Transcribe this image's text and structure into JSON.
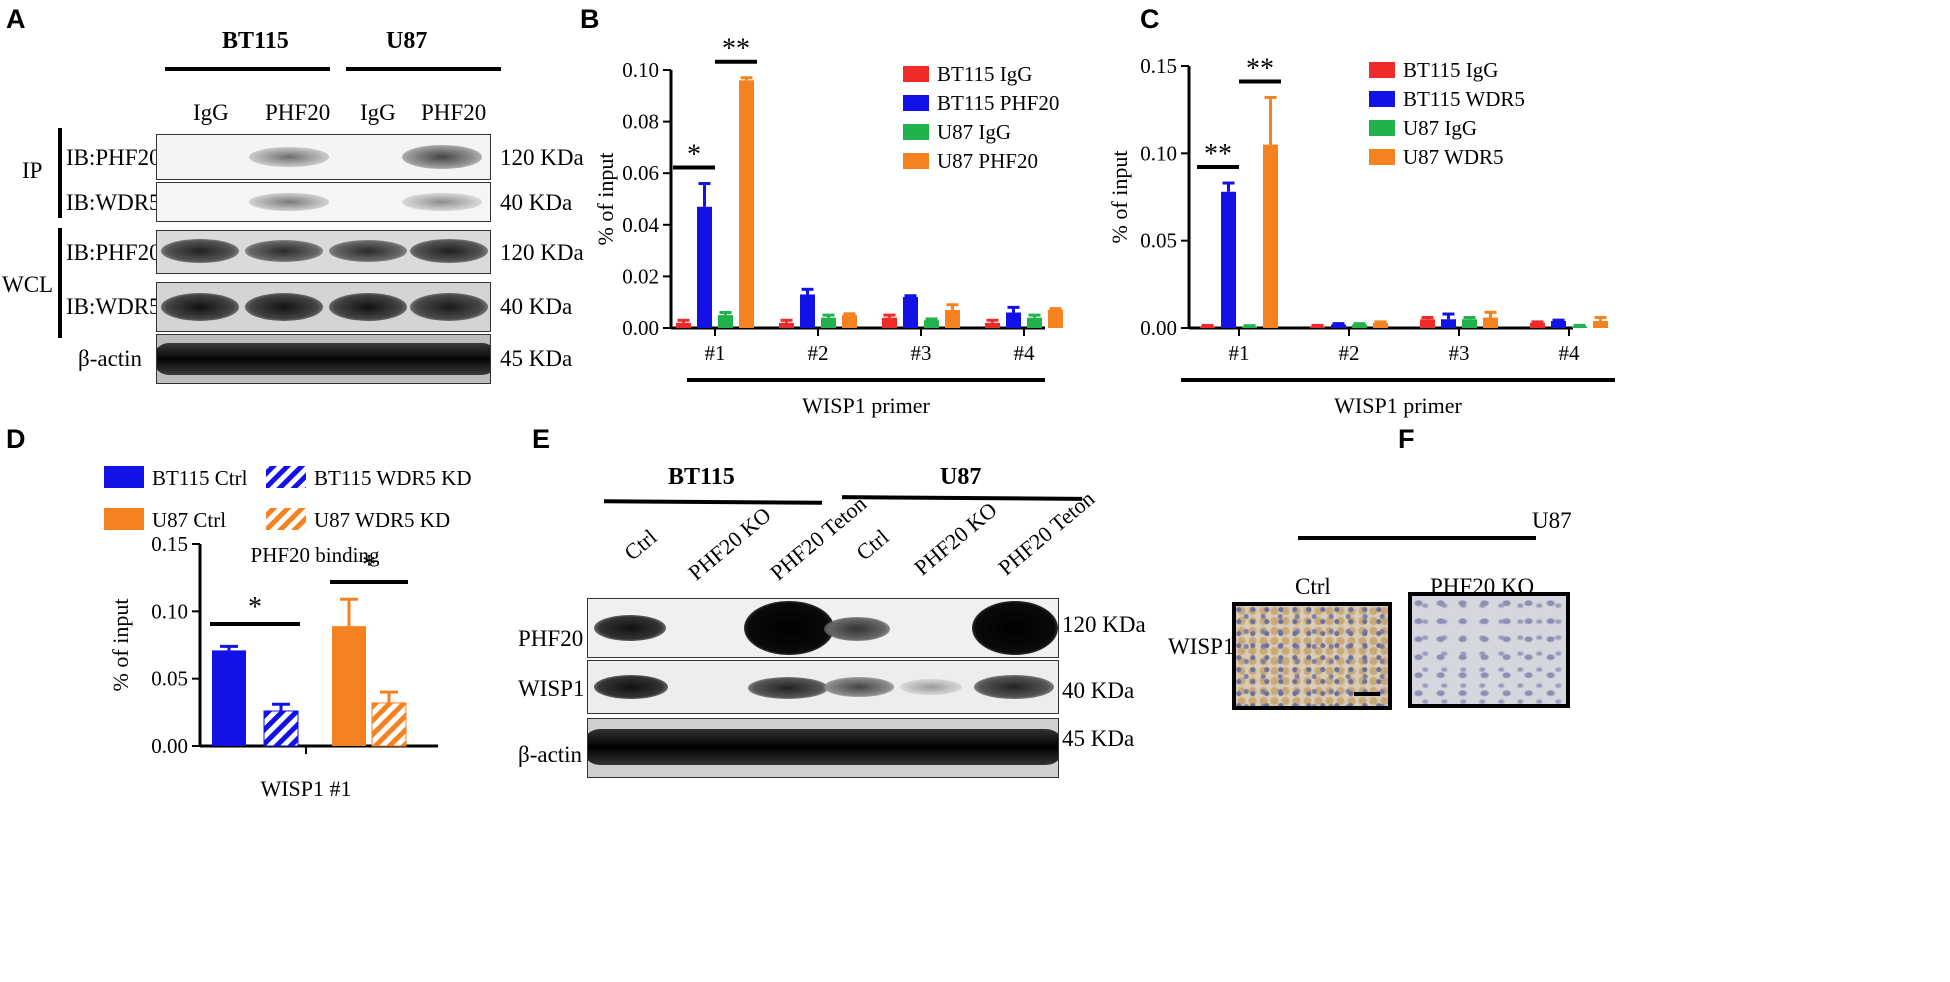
{
  "panels": {
    "A": "A",
    "B": "B",
    "C": "C",
    "D": "D",
    "E": "E",
    "F": "F"
  },
  "colors": {
    "red": "#ee2a2a",
    "blue": "#1212e6",
    "green": "#22b24c",
    "orange": "#f58220"
  },
  "panelA": {
    "group1": "BT115",
    "group2": "U87",
    "lanes": [
      "IgG",
      "PHF20",
      "IgG",
      "PHF20"
    ],
    "ip_label": "IP",
    "wcl_label": "WCL",
    "rows": [
      {
        "label": "IB:PHF20",
        "size": "120 KDa"
      },
      {
        "label": "IB:WDR5",
        "size": "40 KDa"
      },
      {
        "label": "IB:PHF20",
        "size": "120 KDa"
      },
      {
        "label": "IB:WDR5",
        "size": "40 KDa"
      },
      {
        "label": "β-actin",
        "size": "45 KDa"
      }
    ]
  },
  "chart_data": [
    {
      "type": "bar",
      "panel": "B",
      "ylabel": "% of input",
      "xlabel": "WISP1 primer",
      "ylim": [
        0,
        0.1
      ],
      "yticks": [
        "0.00",
        "0.02",
        "0.04",
        "0.06",
        "0.08",
        "0.10"
      ],
      "categories": [
        "#1",
        "#2",
        "#3",
        "#4"
      ],
      "series": [
        {
          "name": "BT115 IgG",
          "values": [
            0.002,
            0.002,
            0.004,
            0.002
          ],
          "errors": [
            0.001,
            0.001,
            0.001,
            0.001
          ]
        },
        {
          "name": "BT115 PHF20",
          "values": [
            0.047,
            0.013,
            0.012,
            0.006
          ],
          "errors": [
            0.009,
            0.002,
            0.0005,
            0.002
          ]
        },
        {
          "name": "U87 IgG",
          "values": [
            0.005,
            0.004,
            0.003,
            0.004
          ],
          "errors": [
            0.001,
            0.001,
            0.0005,
            0.001
          ]
        },
        {
          "name": "U87 PHF20",
          "values": [
            0.096,
            0.005,
            0.007,
            0.007
          ],
          "errors": [
            0.001,
            0.0005,
            0.002,
            0.0005
          ]
        }
      ],
      "significance": [
        {
          "label": "*",
          "category": "#1",
          "pair": [
            0,
            1
          ]
        },
        {
          "label": "**",
          "category": "#1",
          "pair": [
            2,
            3
          ]
        }
      ]
    },
    {
      "type": "bar",
      "panel": "C",
      "ylabel": "% of input",
      "xlabel": "WISP1 primer",
      "ylim": [
        0,
        0.15
      ],
      "yticks": [
        "0.00",
        "0.05",
        "0.10",
        "0.15"
      ],
      "categories": [
        "#1",
        "#2",
        "#3",
        "#4"
      ],
      "series": [
        {
          "name": "BT115 IgG",
          "values": [
            0.001,
            0.001,
            0.005,
            0.003
          ],
          "errors": [
            0.0005,
            0.0005,
            0.001,
            0.0005
          ]
        },
        {
          "name": "BT115 WDR5",
          "values": [
            0.078,
            0.002,
            0.005,
            0.004
          ],
          "errors": [
            0.005,
            0.0005,
            0.003,
            0.0005
          ]
        },
        {
          "name": "U87 IgG",
          "values": [
            0.001,
            0.002,
            0.005,
            0.001
          ],
          "errors": [
            0.0003,
            0.0005,
            0.001,
            0.0005
          ]
        },
        {
          "name": "U87 WDR5",
          "values": [
            0.105,
            0.003,
            0.006,
            0.004
          ],
          "errors": [
            0.027,
            0.0005,
            0.003,
            0.002
          ]
        }
      ],
      "significance": [
        {
          "label": "**",
          "category": "#1",
          "pair": [
            0,
            1
          ]
        },
        {
          "label": "**",
          "category": "#1",
          "pair": [
            2,
            3
          ]
        }
      ]
    },
    {
      "type": "bar",
      "panel": "D",
      "title": "PHF20 binding",
      "ylabel": "% of input",
      "xlabel": "WISP1 #1",
      "ylim": [
        0,
        0.15
      ],
      "yticks": [
        "0.00",
        "0.05",
        "0.10",
        "0.15"
      ],
      "series": [
        {
          "name": "BT115 Ctrl",
          "value": 0.071,
          "error": 0.003,
          "color": "#1212e6",
          "hatched": false
        },
        {
          "name": "BT115 WDR5 KD",
          "value": 0.026,
          "error": 0.005,
          "color": "#1212e6",
          "hatched": true
        },
        {
          "name": "U87 Ctrl",
          "value": 0.089,
          "error": 0.02,
          "color": "#f58220",
          "hatched": false
        },
        {
          "name": "U87 WDR5 KD",
          "value": 0.032,
          "error": 0.008,
          "color": "#f58220",
          "hatched": true
        }
      ],
      "significance": [
        {
          "label": "*",
          "pair": [
            0,
            1
          ]
        },
        {
          "label": "*",
          "pair": [
            2,
            3
          ]
        }
      ]
    }
  ],
  "panelE": {
    "group1": "BT115",
    "group2": "U87",
    "lanes": [
      "Ctrl",
      "PHF20 KO",
      "PHF20 Teton",
      "Ctrl",
      "PHF20 KO",
      "PHF20 Teton"
    ],
    "rows": [
      {
        "label": "PHF20",
        "size": "120 KDa"
      },
      {
        "label": "WISP1",
        "size": "40 KDa"
      },
      {
        "label": "β-actin",
        "size": "45 KDa"
      }
    ]
  },
  "panelF": {
    "group": "U87",
    "cols": [
      "Ctrl",
      "PHF20 KO"
    ],
    "row_label": "WISP1"
  }
}
